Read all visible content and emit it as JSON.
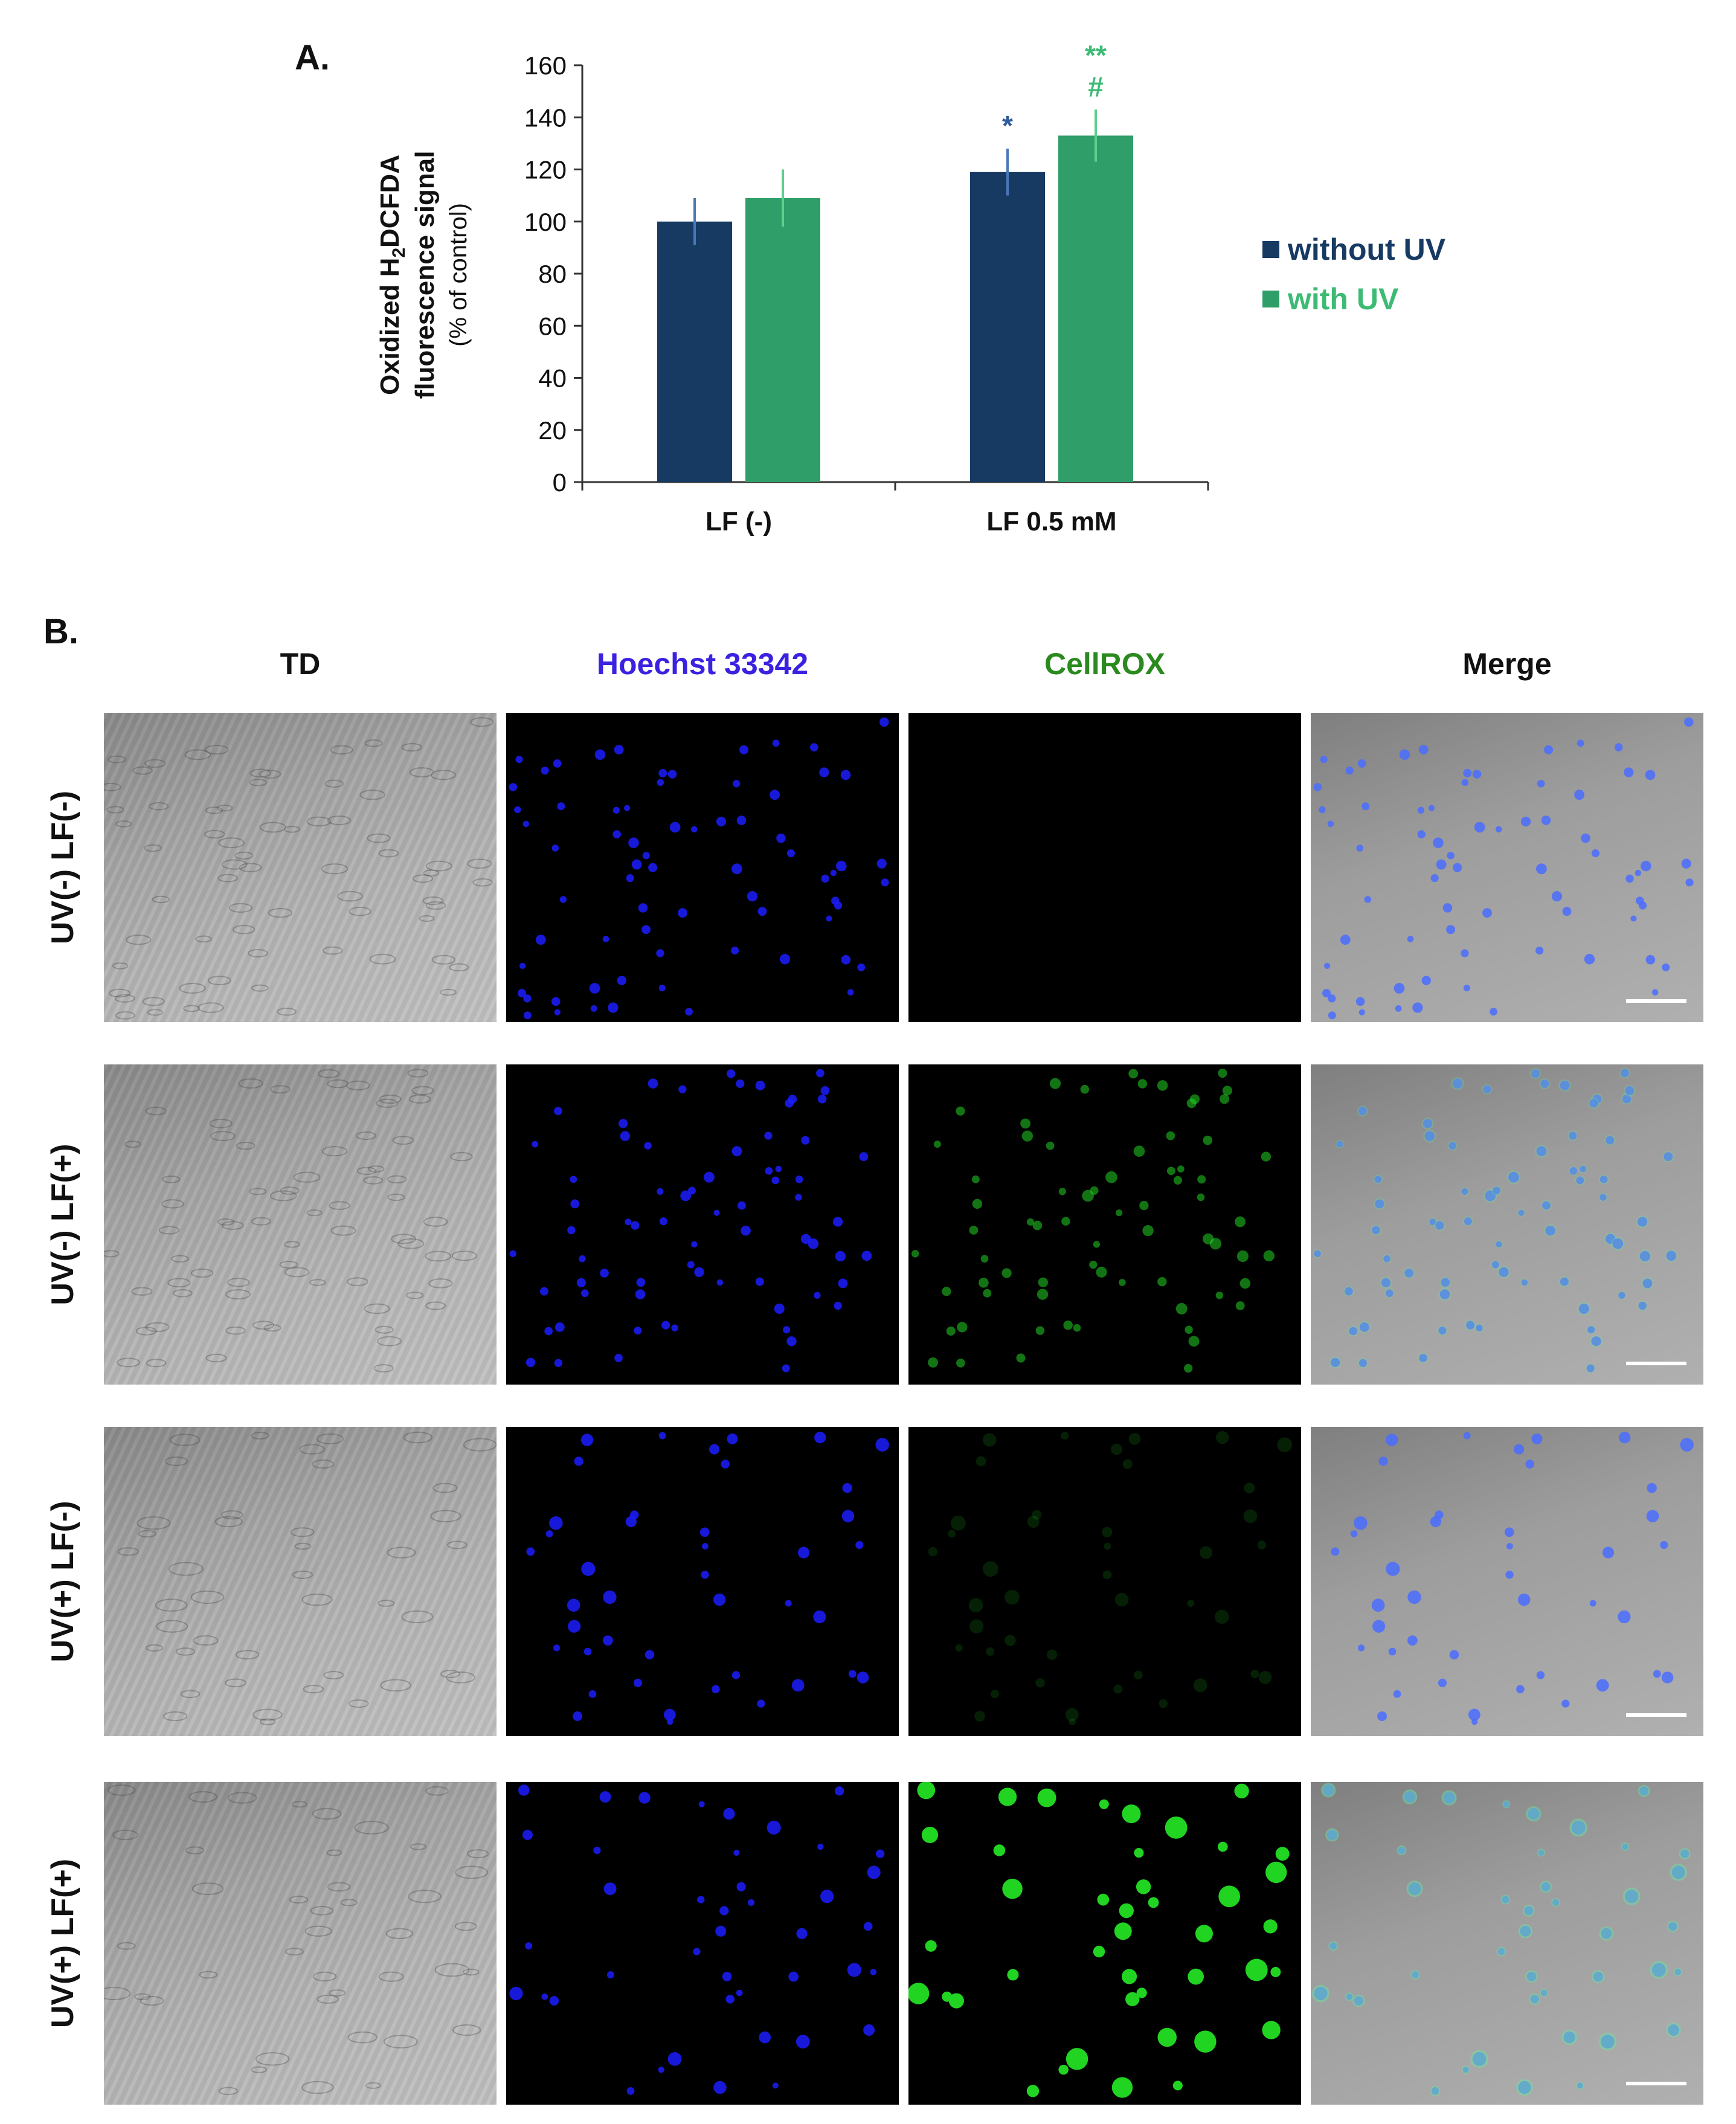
{
  "panel_a": {
    "letter": "A.",
    "chart_data": {
      "type": "bar",
      "ylabel_line1": "Oxidized H",
      "ylabel_sub": "2",
      "ylabel_line1_rest": "DCFDA",
      "ylabel_line2": "fluorescence signal",
      "ylabel_line3": "(% of control)",
      "categories": [
        "LF (-)",
        "LF 0.5 mM"
      ],
      "series": [
        {
          "name": "without UV",
          "color": "#173a63",
          "values": [
            100,
            119
          ],
          "errors": [
            9,
            9
          ],
          "annotations": [
            "",
            "*"
          ]
        },
        {
          "name": "with UV",
          "color": "#2f9e68",
          "values": [
            109,
            133
          ],
          "errors": [
            11,
            10
          ],
          "annotations": [
            "",
            "**\n#"
          ]
        }
      ],
      "ylim": [
        0,
        160
      ],
      "yticks": [
        0,
        20,
        40,
        60,
        80,
        100,
        120,
        140,
        160
      ],
      "grid": false,
      "legend_position": "right"
    },
    "annotation_colors": {
      "without UV": "#2e5b9a",
      "with UV": "#3dbb75"
    }
  },
  "panel_b": {
    "letter": "B.",
    "columns": [
      {
        "label": "TD",
        "color": "#111111"
      },
      {
        "label": "Hoechst 33342",
        "color": "#3a22e0"
      },
      {
        "label": "CellROX",
        "color": "#2a8a1e"
      },
      {
        "label": "Merge",
        "color": "#111111"
      }
    ],
    "rows": [
      {
        "label": "UV(-)  LF(-)",
        "green_level": 0.02
      },
      {
        "label": "UV(-)  LF(+)",
        "green_level": 0.55
      },
      {
        "label": "UV(+)  LF(-)",
        "green_level": 0.15
      },
      {
        "label": "UV(+)  LF(+)",
        "green_level": 1.0
      }
    ]
  }
}
